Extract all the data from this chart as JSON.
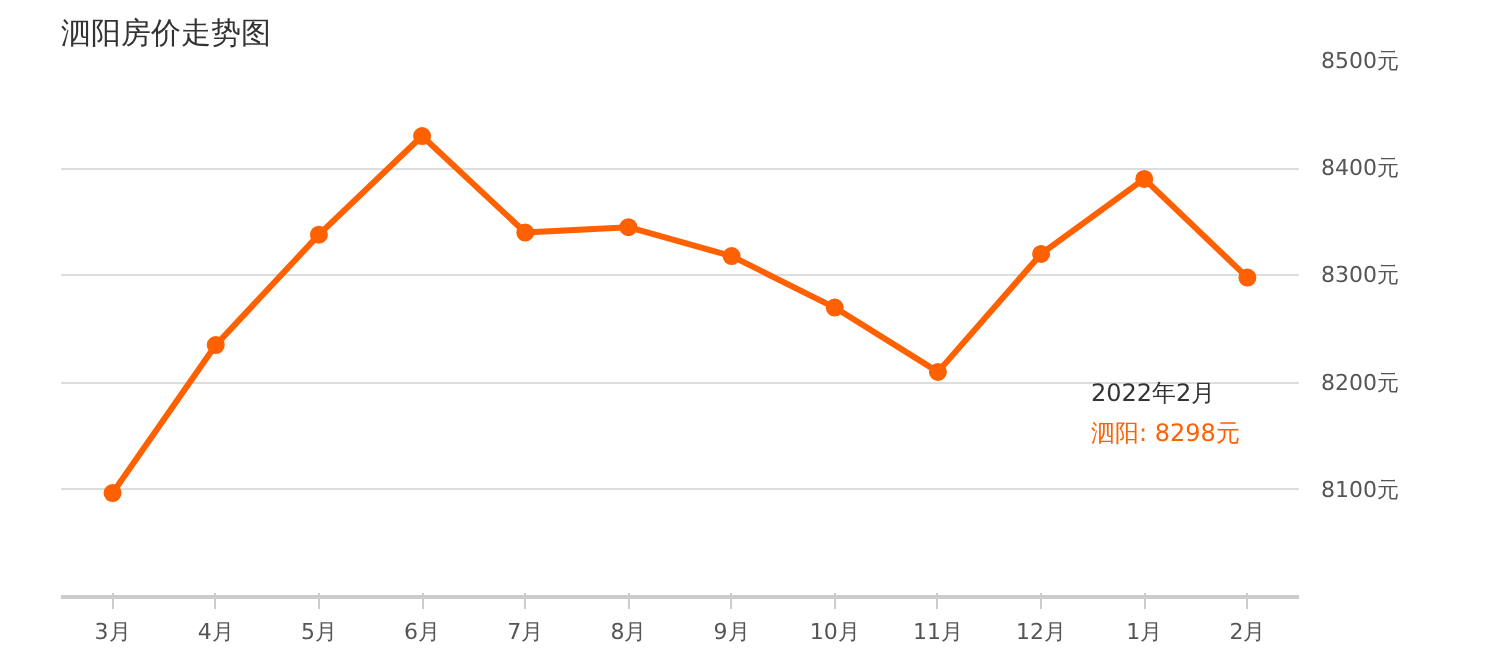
{
  "chart_data": {
    "type": "line",
    "title": "泗阳房价走势图",
    "categories": [
      "3月",
      "4月",
      "5月",
      "6月",
      "7月",
      "8月",
      "9月",
      "10月",
      "11月",
      "12月",
      "1月",
      "2月"
    ],
    "series": [
      {
        "color": "#ff6000",
        "values": [
          8097,
          8235,
          8338,
          8430,
          8340,
          8345,
          8318,
          8270,
          8210,
          8320,
          8390,
          8298
        ]
      }
    ],
    "ylim": [
      8000,
      8500
    ],
    "yticks": [
      {
        "value": 8100,
        "label": "8100元"
      },
      {
        "value": 8200,
        "label": "8200元"
      },
      {
        "value": 8300,
        "label": "8300元"
      },
      {
        "value": 8400,
        "label": "8400元"
      },
      {
        "value": 8500,
        "label": "8500元"
      }
    ],
    "grid": "y",
    "marker": "circle",
    "line_style": "solid",
    "annotations": [
      "2022年2月",
      "泗阳:  8298元"
    ]
  }
}
